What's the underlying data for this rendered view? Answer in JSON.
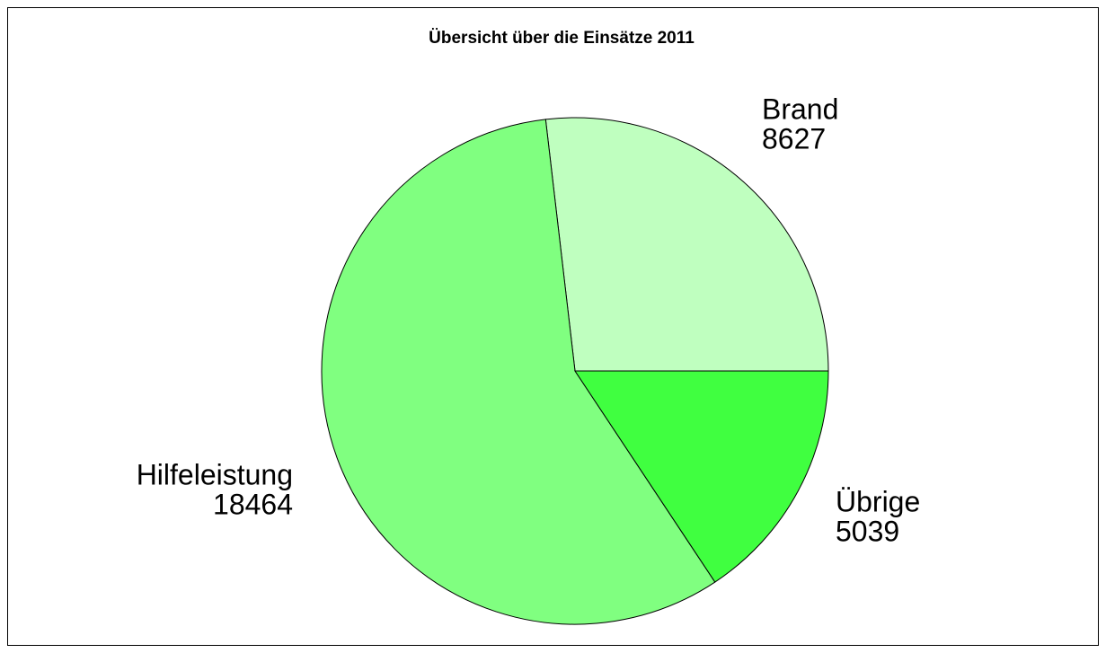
{
  "chart_data": {
    "type": "pie",
    "title": "Übersicht über die Einsätze 2011",
    "categories": [
      "Brand",
      "Hilfeleistung",
      "Übrige"
    ],
    "values": [
      8627,
      18464,
      5039
    ],
    "colors": [
      "#bfffbf",
      "#80ff80",
      "#40ff40"
    ]
  }
}
